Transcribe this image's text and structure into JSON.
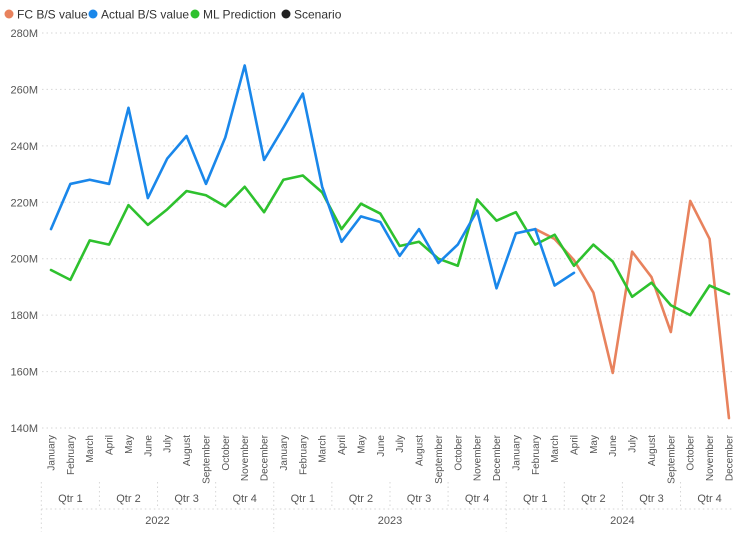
{
  "chart_data": {
    "type": "line",
    "legend": {
      "placement": "top-left",
      "items": [
        {
          "label": "FC B/S value",
          "color": "#E8825D"
        },
        {
          "label": "Actual B/S value",
          "color": "#1A87EA"
        },
        {
          "label": "ML Prediction",
          "color": "#2EC12E"
        },
        {
          "label": "Scenario",
          "color": "#222222"
        }
      ]
    },
    "y_ticks": [
      "280M",
      "260M",
      "240M",
      "220M",
      "200M",
      "180M",
      "160M",
      "140M"
    ],
    "ylim": [
      140,
      280
    ],
    "grid": true,
    "months": [
      "January",
      "February",
      "March",
      "April",
      "May",
      "June",
      "July",
      "August",
      "September",
      "October",
      "November",
      "December",
      "January",
      "February",
      "March",
      "April",
      "May",
      "June",
      "July",
      "August",
      "September",
      "October",
      "November",
      "December",
      "January",
      "February",
      "March",
      "April",
      "May",
      "June",
      "July",
      "August",
      "September",
      "October",
      "November",
      "December"
    ],
    "quarters": [
      "Qtr 1",
      "Qtr 2",
      "Qtr 3",
      "Qtr 4",
      "Qtr 1",
      "Qtr 2",
      "Qtr 3",
      "Qtr 4",
      "Qtr 1",
      "Qtr 2",
      "Qtr 3",
      "Qtr 4"
    ],
    "years": [
      "2022",
      "2023",
      "2024"
    ],
    "series": [
      {
        "name": "Actual B/S value",
        "color": "#1A87EA",
        "values": [
          210.5,
          226.5,
          228,
          226.5,
          253.5,
          221.5,
          235.5,
          243.5,
          226.5,
          243,
          268.5,
          235,
          246.5,
          258.5,
          225.5,
          206,
          215,
          213,
          201,
          210.5,
          198.5,
          205,
          217,
          189.5,
          209,
          210.5,
          190.5,
          195,
          null,
          null,
          null,
          null,
          null,
          null,
          null,
          null
        ]
      },
      {
        "name": "ML Prediction",
        "color": "#2EC12E",
        "values": [
          196,
          192.5,
          206.5,
          205,
          219,
          212,
          217.5,
          224,
          222.5,
          218.5,
          225.5,
          216.5,
          228,
          229.5,
          223.5,
          210.5,
          219.5,
          216,
          204.5,
          206,
          200,
          197.5,
          221,
          213.5,
          216.5,
          205,
          208.5,
          197.5,
          205,
          199,
          186.5,
          191.5,
          183.5,
          180,
          190.5,
          187.5
        ]
      },
      {
        "name": "FC B/S value",
        "color": "#E8825D",
        "values": [
          null,
          null,
          null,
          null,
          null,
          null,
          null,
          null,
          null,
          null,
          null,
          null,
          null,
          null,
          null,
          null,
          null,
          null,
          null,
          null,
          null,
          null,
          null,
          null,
          null,
          210.5,
          207,
          199.5,
          188,
          159.5,
          202.5,
          193.5,
          174,
          220.5,
          207,
          143.5
        ]
      }
    ]
  }
}
